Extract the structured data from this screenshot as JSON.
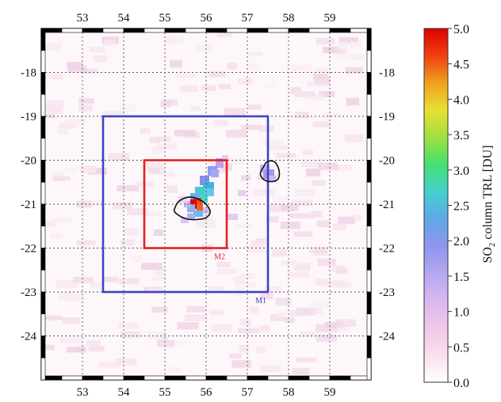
{
  "map": {
    "x_ticks": [
      "53",
      "54",
      "55",
      "56",
      "57",
      "58",
      "59"
    ],
    "y_ticks": [
      "-18",
      "-19",
      "-20",
      "-21",
      "-22",
      "-23",
      "-24"
    ],
    "lon_range": [
      52.0,
      60.0
    ],
    "lat_range": [
      -17.0,
      -25.0
    ],
    "grid": "dotted",
    "domains": [
      {
        "label": "M1",
        "color": "#3a45c4",
        "lon": [
          53.5,
          57.5
        ],
        "lat": [
          -19.0,
          -23.0
        ]
      },
      {
        "label": "M2",
        "color": "#e02020",
        "lon": [
          54.5,
          56.5
        ],
        "lat": [
          -20.0,
          -22.0
        ]
      }
    ],
    "islands": [
      "Reunion",
      "Mauritius"
    ]
  },
  "colorbar": {
    "title_parts": [
      "SO",
      "2",
      " column TRL [DU]"
    ],
    "ticks": [
      "5.0",
      "4.5",
      "4.0",
      "3.5",
      "3.0",
      "2.5",
      "2.0",
      "1.5",
      "1.0",
      "0.5",
      "0.0"
    ],
    "range": [
      0.0,
      5.0
    ],
    "colors": [
      "#ffffff",
      "#f9e0ee",
      "#f0c7e6",
      "#d9b8f2",
      "#b4a8f0",
      "#8f96ec",
      "#5fa8e8",
      "#44d0d0",
      "#44e070",
      "#a0e040",
      "#e8e030",
      "#f0a020",
      "#f04010",
      "#e00000"
    ]
  }
}
